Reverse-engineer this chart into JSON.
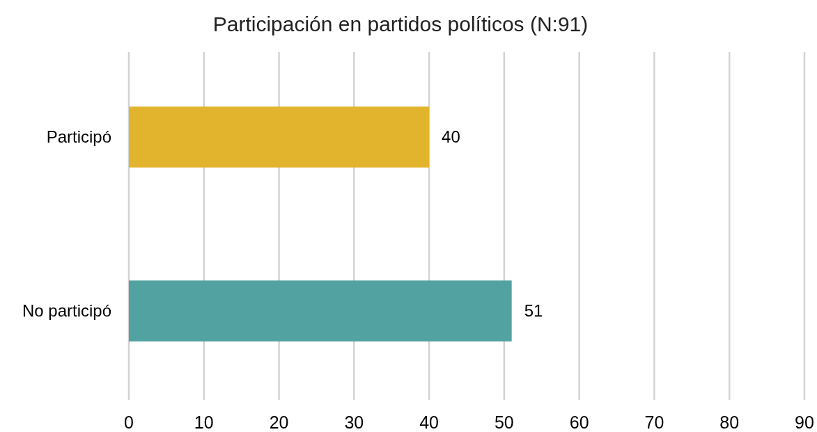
{
  "chart_data": {
    "type": "bar",
    "orientation": "horizontal",
    "title": "Participación en partidos políticos (N:91)",
    "categories": [
      "Participó",
      "No participó"
    ],
    "values": [
      40,
      51
    ],
    "colors": [
      "#e2b42e",
      "#52a2a1"
    ],
    "xlim": [
      0,
      90
    ],
    "xticks": [
      0,
      10,
      20,
      30,
      40,
      50,
      60,
      70,
      80,
      90
    ],
    "grid": "x",
    "data_labels": true
  }
}
